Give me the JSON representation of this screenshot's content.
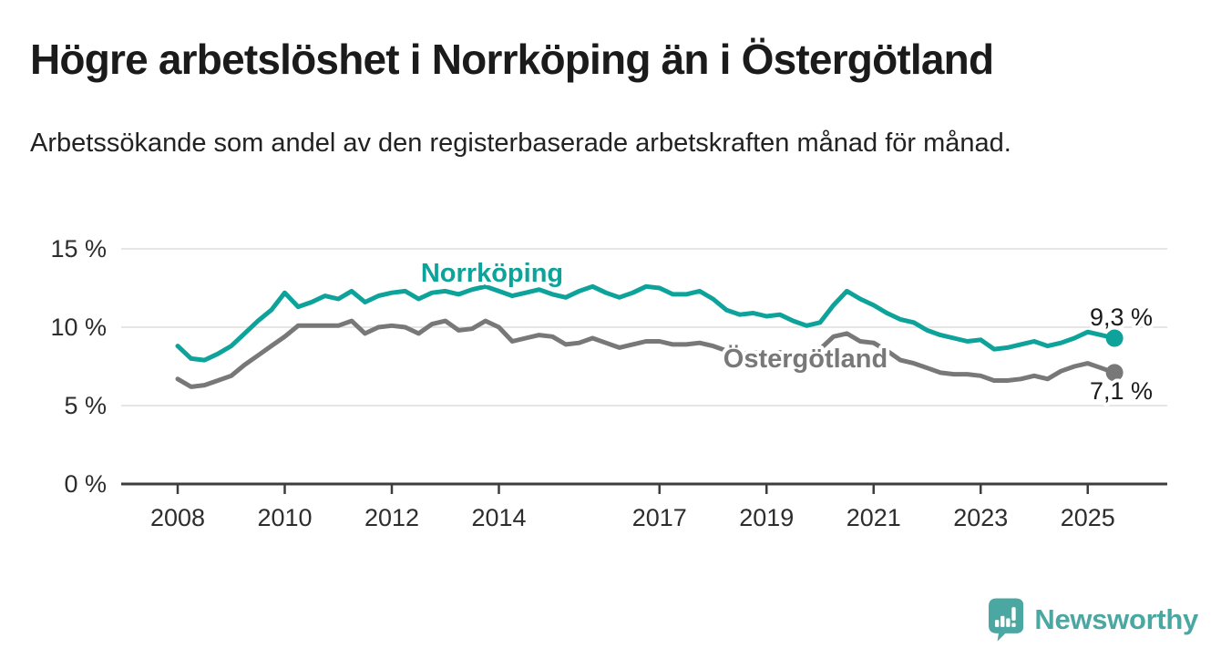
{
  "header": {
    "title": "Högre arbetslöshet i Norrköping än i Östergötland",
    "subtitle": "Arbetssökande som andel av den registerbaserade arbetskraften månad för månad."
  },
  "footer": {
    "brand": "Newsworthy",
    "logo_icon": "speech-bubble-with-bar-chart-and-exclamation"
  },
  "colors": {
    "norrkoping_line": "#0da39a",
    "ostergotland_line": "#787878",
    "value_label_text": "#1a1a1a",
    "axis": "#3d3d3d",
    "axis_text": "#2d2d2d",
    "grid": "#dedede",
    "logo_teal": "#4ba7a2",
    "background": "#ffffff"
  },
  "chart_data": {
    "type": "line",
    "title": "Högre arbetslöshet i Norrköping än i Östergötland",
    "subtitle": "Arbetssökande som andel av den registerbaserade arbetskraften månad för månad.",
    "xlabel": "",
    "ylabel": "%",
    "ylim": [
      0,
      15
    ],
    "grid": "horizontal",
    "legend": "inline-series-labels",
    "x_unit": "year (monthly data, sampled quarterly)",
    "x": [
      2008,
      2008.25,
      2008.5,
      2008.75,
      2009,
      2009.25,
      2009.5,
      2009.75,
      2010,
      2010.25,
      2010.5,
      2010.75,
      2011,
      2011.25,
      2011.5,
      2011.75,
      2012,
      2012.25,
      2012.5,
      2012.75,
      2013,
      2013.25,
      2013.5,
      2013.75,
      2014,
      2014.25,
      2014.5,
      2014.75,
      2015,
      2015.25,
      2015.5,
      2015.75,
      2016,
      2016.25,
      2016.5,
      2016.75,
      2017,
      2017.25,
      2017.5,
      2017.75,
      2018,
      2018.25,
      2018.5,
      2018.75,
      2019,
      2019.25,
      2019.5,
      2019.75,
      2020,
      2020.25,
      2020.5,
      2020.75,
      2021,
      2021.25,
      2021.5,
      2021.75,
      2022,
      2022.25,
      2022.5,
      2022.75,
      2023,
      2023.25,
      2023.5,
      2023.75,
      2024,
      2024.25,
      2024.5,
      2024.75,
      2025,
      2025.25,
      2025.5
    ],
    "series": [
      {
        "name": "Norrköping",
        "color": "#0da39a",
        "end_label": "9,3 %",
        "end_value": 9.3,
        "values": [
          8.8,
          8.0,
          7.9,
          8.3,
          8.8,
          9.6,
          10.4,
          11.1,
          12.2,
          11.3,
          11.6,
          12.0,
          11.8,
          12.3,
          11.6,
          12.0,
          12.2,
          12.3,
          11.8,
          12.2,
          12.3,
          12.1,
          12.4,
          12.6,
          12.3,
          12.0,
          12.2,
          12.4,
          12.1,
          11.9,
          12.3,
          12.6,
          12.2,
          11.9,
          12.2,
          12.6,
          12.5,
          12.1,
          12.1,
          12.3,
          11.8,
          11.1,
          10.8,
          10.9,
          10.7,
          10.8,
          10.4,
          10.1,
          10.3,
          11.4,
          12.3,
          11.8,
          11.4,
          10.9,
          10.5,
          10.3,
          9.8,
          9.5,
          9.3,
          9.1,
          9.2,
          8.6,
          8.7,
          8.9,
          9.1,
          8.8,
          9.0,
          9.3,
          9.7,
          9.5,
          9.3
        ]
      },
      {
        "name": "Östergötland",
        "color": "#787878",
        "end_label": "7,1 %",
        "end_value": 7.1,
        "values": [
          6.7,
          6.2,
          6.3,
          6.6,
          6.9,
          7.6,
          8.2,
          8.8,
          9.4,
          10.1,
          10.1,
          10.1,
          10.1,
          10.4,
          9.6,
          10.0,
          10.1,
          10.0,
          9.6,
          10.2,
          10.4,
          9.8,
          9.9,
          10.4,
          10.0,
          9.1,
          9.3,
          9.5,
          9.4,
          8.9,
          9.0,
          9.3,
          9.0,
          8.7,
          8.9,
          9.1,
          9.1,
          8.9,
          8.9,
          9.0,
          8.8,
          8.5,
          8.3,
          8.4,
          8.3,
          8.4,
          8.2,
          8.3,
          8.6,
          9.4,
          9.6,
          9.1,
          9.0,
          8.5,
          7.9,
          7.7,
          7.4,
          7.1,
          7.0,
          7.0,
          6.9,
          6.6,
          6.6,
          6.7,
          6.9,
          6.7,
          7.2,
          7.5,
          7.7,
          7.4,
          7.1
        ]
      }
    ],
    "yticks": [
      {
        "value": 0,
        "label": "0 %"
      },
      {
        "value": 5,
        "label": "5 %"
      },
      {
        "value": 10,
        "label": "10 %"
      },
      {
        "value": 15,
        "label": "15 %"
      }
    ],
    "xticks": [
      {
        "value": 2008,
        "label": "2008"
      },
      {
        "value": 2010,
        "label": "2010"
      },
      {
        "value": 2012,
        "label": "2012"
      },
      {
        "value": 2014,
        "label": "2014"
      },
      {
        "value": 2017,
        "label": "2017"
      },
      {
        "value": 2019,
        "label": "2019"
      },
      {
        "value": 2021,
        "label": "2021"
      },
      {
        "value": 2023,
        "label": "2023"
      },
      {
        "value": 2025,
        "label": "2025"
      }
    ]
  }
}
